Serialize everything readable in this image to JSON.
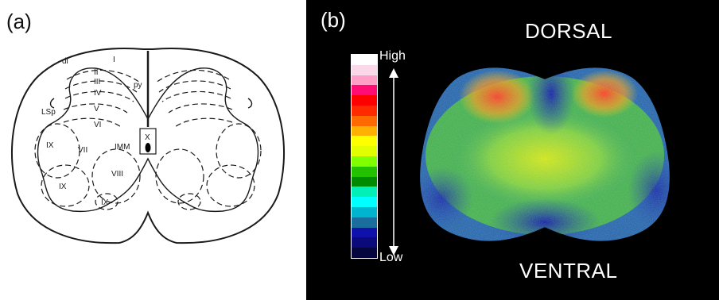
{
  "panel_a": {
    "label": "(a)",
    "region_labels": {
      "dl": "dl",
      "I": "I",
      "II": "II",
      "III": "III",
      "IV": "IV",
      "V": "V",
      "VI": "VI",
      "VII": "VII",
      "VIII": "VIII",
      "IX_left": "IX",
      "IX_lower": "IX",
      "IX_bottom": "IX",
      "X": "X",
      "IMM": "IMM",
      "py": "py",
      "LSp": "LSp"
    }
  },
  "panel_b": {
    "label": "(b)",
    "dorsal": "DORSAL",
    "ventral": "VENTRAL",
    "scale_high": "High",
    "scale_low": "Low",
    "colorscale": [
      "#ffffff",
      "#fbd7ea",
      "#ff9fc8",
      "#ff0d74",
      "#ff0000",
      "#ff2a00",
      "#ff6a00",
      "#ffb000",
      "#ffff00",
      "#e1ff00",
      "#7fff00",
      "#22c200",
      "#008a00",
      "#00f0b8",
      "#00ffff",
      "#00b4d0",
      "#1a6e9e",
      "#1010aa",
      "#0a0a7a",
      "#06063e"
    ]
  }
}
